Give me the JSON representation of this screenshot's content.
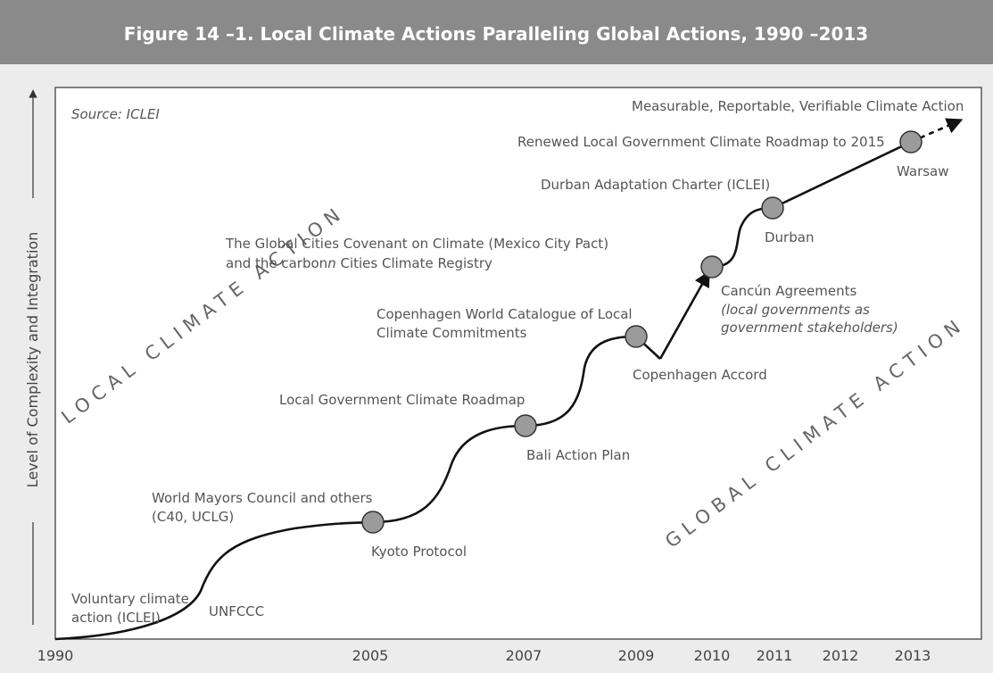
{
  "title": "Figure 14 –1. Local Climate Actions Paralleling Global Actions, 1990 –2013",
  "source": "Source: ICLEI",
  "y_axis_label": "Level of Complexity and Integration",
  "x_axis_labels": [
    "1990",
    "2005",
    "2007",
    "2009",
    "2010",
    "2011",
    "2012",
    "2013"
  ],
  "diagonal_labels": [
    "LOCAL CLIMATE ACTION",
    "GLOBAL CLIMATE ACTION"
  ],
  "global_milestones": [
    "UNFCCC",
    "Kyoto Protocol",
    "Bali Action Plan",
    "Copenhagen Accord",
    "Cancún Agreements",
    "Durban",
    "Warsaw"
  ],
  "cancun_note": [
    "(local governments as",
    "government stakeholders)"
  ],
  "local_actions": {
    "voluntary": [
      "Voluntary climate",
      "action (ICLEI)"
    ],
    "mayors": [
      "World Mayors Council and others",
      "(C40, UCLG)"
    ],
    "roadmap": "Local Government Climate Roadmap",
    "catalogue": [
      "Copenhagen World Catalogue of Local",
      "Climate Commitments"
    ],
    "covenant": [
      "The Global Cities Covenant on Climate (Mexico City Pact)",
      "and the carbon",
      "n",
      " Cities Climate Registry"
    ],
    "adaptation": "Durban Adaptation Charter (ICLEI)",
    "renewed": "Renewed Local Government Climate Roadmap to 2015",
    "mrv": "Measurable, Reportable, Verifiable Climate Action"
  }
}
